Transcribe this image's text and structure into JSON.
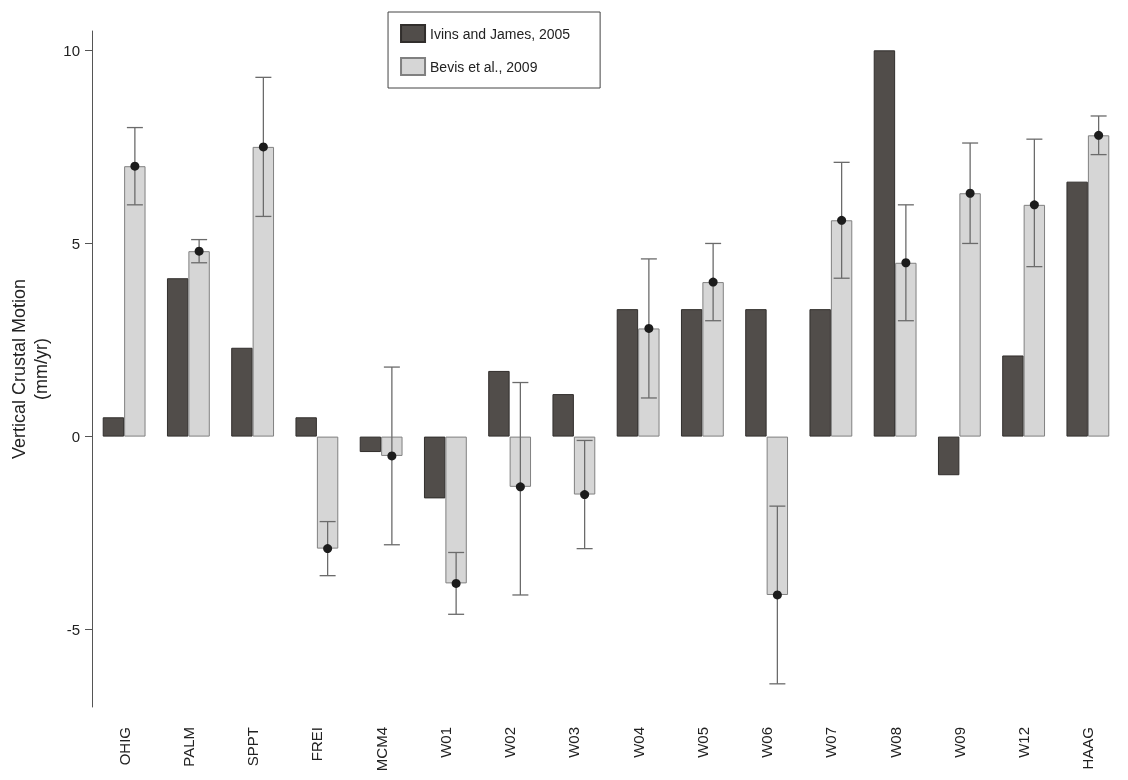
{
  "chart_data": {
    "type": "bar",
    "ylabel": "Vertical Crustal Motion\n(mm/yr)",
    "categories": [
      "OHIG",
      "PALM",
      "SPPT",
      "FREI",
      "MCM4",
      "W01",
      "W02",
      "W03",
      "W04",
      "W05",
      "W06",
      "W07",
      "W08",
      "W09",
      "W12",
      "HAAG"
    ],
    "series": [
      {
        "name": "Ivins and James, 2005",
        "color": "#514d4a",
        "values": [
          0.5,
          4.1,
          2.3,
          0.5,
          -0.4,
          -1.6,
          1.7,
          1.1,
          3.3,
          3.3,
          3.3,
          3.3,
          10.0,
          -1.0,
          2.1,
          6.6
        ]
      },
      {
        "name": "Bevis et al., 2009",
        "color": "#d6d6d6",
        "values": [
          7.0,
          4.8,
          7.5,
          -2.9,
          -0.5,
          -3.8,
          -1.3,
          -1.5,
          2.8,
          4.0,
          -4.1,
          5.6,
          4.5,
          6.3,
          6.0,
          7.8
        ],
        "errors": [
          [
            6.0,
            8.0
          ],
          [
            4.5,
            5.1
          ],
          [
            5.7,
            9.3
          ],
          [
            -3.6,
            -2.2
          ],
          [
            -2.8,
            1.8
          ],
          [
            -4.6,
            -3.0
          ],
          [
            -4.1,
            1.4
          ],
          [
            -2.9,
            -0.1
          ],
          [
            1.0,
            4.6
          ],
          [
            3.0,
            5.0
          ],
          [
            -6.4,
            -1.8
          ],
          [
            4.1,
            7.1
          ],
          [
            3.0,
            6.0
          ],
          [
            5.0,
            7.6
          ],
          [
            4.4,
            7.7
          ],
          [
            7.3,
            8.3
          ]
        ]
      },
      {
        "type": "scatter",
        "color": "#1c1c1c",
        "marker": "circle",
        "x": [
          "OHIG",
          "PALM",
          "SPPT",
          "FREI",
          "MCM4",
          "W01",
          "W02",
          "W03",
          "W04",
          "W05",
          "W06",
          "W07",
          "W08",
          "W09",
          "W12",
          "HAAG"
        ],
        "values": [
          7.0,
          4.8,
          7.5,
          -2.9,
          -0.5,
          -3.8,
          -1.3,
          -1.5,
          2.8,
          4.0,
          -4.1,
          5.6,
          4.5,
          6.3,
          6.0,
          7.8
        ]
      }
    ],
    "ylim": [
      -7,
      10.5
    ],
    "yticks": [
      -5,
      0,
      5,
      10
    ],
    "legend": "top"
  }
}
